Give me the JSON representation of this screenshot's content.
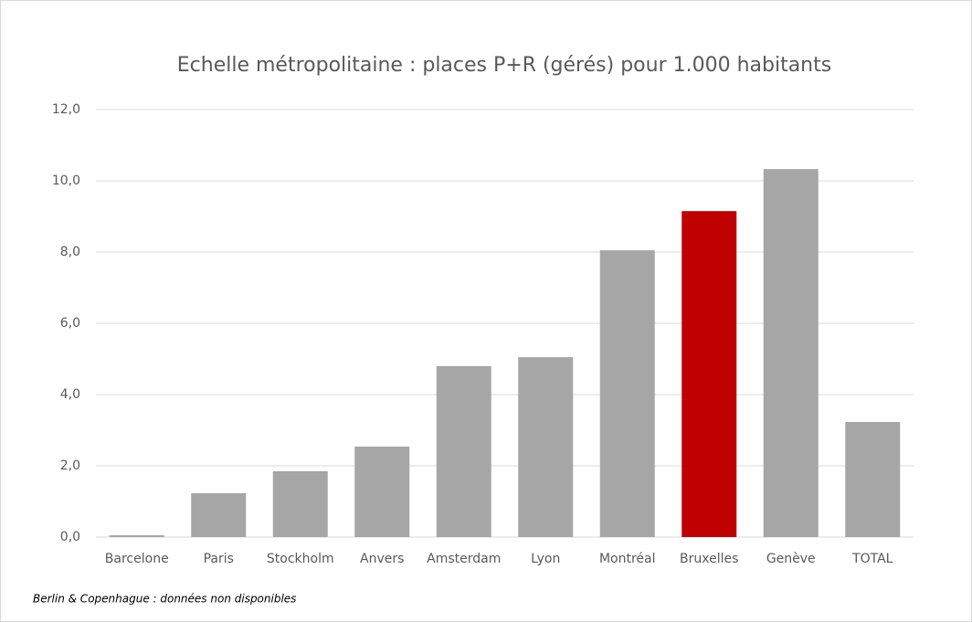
{
  "chart_data": {
    "type": "bar",
    "title": "Echelle métropolitaine : places P+R (gérés) pour 1.000 habitants",
    "categories": [
      "Barcelone",
      "Paris",
      "Stockholm",
      "Anvers",
      "Amsterdam",
      "Lyon",
      "Montréal",
      "Bruxelles",
      "Genève",
      "TOTAL"
    ],
    "values": [
      0.05,
      1.23,
      1.85,
      2.54,
      4.8,
      5.05,
      8.05,
      9.15,
      10.33,
      3.23
    ],
    "colors": [
      "#a6a6a6",
      "#a6a6a6",
      "#a6a6a6",
      "#a6a6a6",
      "#a6a6a6",
      "#a6a6a6",
      "#a6a6a6",
      "#c00000",
      "#a6a6a6",
      "#a6a6a6"
    ],
    "ylim": [
      0,
      12
    ],
    "yticks": [
      {
        "value": 0,
        "label": "0,0"
      },
      {
        "value": 2,
        "label": "2,0"
      },
      {
        "value": 4,
        "label": "4,0"
      },
      {
        "value": 6,
        "label": "6,0"
      },
      {
        "value": 8,
        "label": "8,0"
      },
      {
        "value": 10,
        "label": "10,0"
      },
      {
        "value": 12,
        "label": "12,0"
      }
    ],
    "grid": true,
    "annotation": "Berlin & Copenhague : données non disponibles"
  }
}
